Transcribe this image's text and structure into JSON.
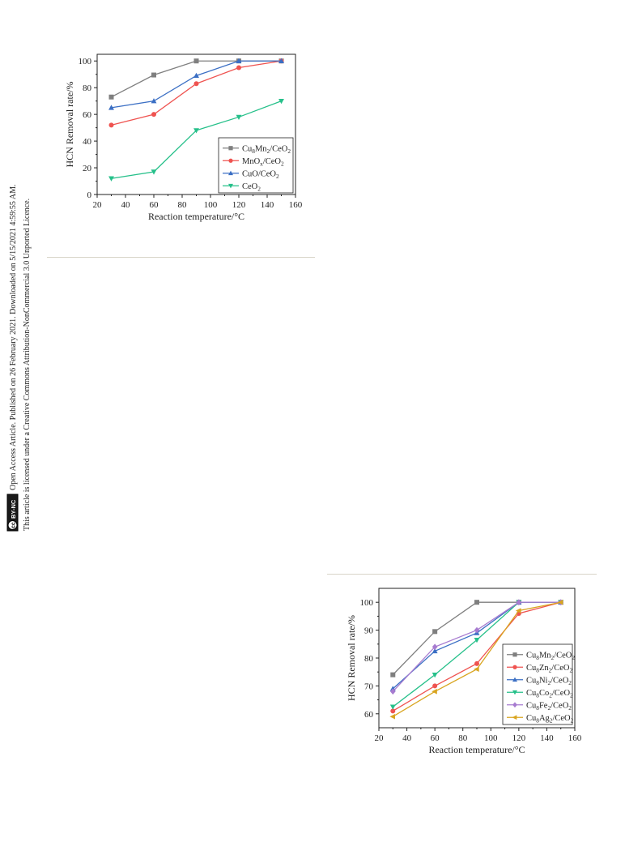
{
  "side_note": {
    "line1": "Open Access Article. Published on 26 February 2021. Downloaded on 5/15/2021 4:59:55 AM.",
    "line2": "This article is licensed under a Creative Commons Attribution-NonCommercial 3.0 Unported Licence.",
    "badge_cc": "cc",
    "badge_text": "BY-NC"
  },
  "chart_data": [
    {
      "type": "line",
      "title": "",
      "xlabel": "Reaction temperature/°C",
      "ylabel": "HCN Removal rate/%",
      "xlim": [
        20,
        160
      ],
      "ylim": [
        0,
        105
      ],
      "xticks": [
        20,
        40,
        60,
        80,
        100,
        120,
        140,
        160
      ],
      "yticks": [
        0,
        20,
        40,
        60,
        80,
        100
      ],
      "grid": false,
      "legend_position": "bottom-right",
      "x": [
        30,
        60,
        90,
        120,
        150
      ],
      "series": [
        {
          "name": "Cu8Mn2/CeO2",
          "base": "Cu",
          "sub1": "8",
          "mid": "Mn",
          "sub2": "2",
          "tail": "/CeO",
          "sub3": "2",
          "color": "#7f7f7f",
          "marker": "square",
          "values": [
            73,
            89.5,
            100,
            100,
            100
          ]
        },
        {
          "name": "MnOx/CeO2",
          "base": "MnO",
          "sub1": "x",
          "mid": "",
          "sub2": "",
          "tail": "/CeO",
          "sub3": "2",
          "color": "#ef5350",
          "marker": "circle",
          "values": [
            52,
            60,
            83,
            95,
            100
          ]
        },
        {
          "name": "CuO/CeO2",
          "base": "CuO",
          "sub1": "",
          "mid": "",
          "sub2": "",
          "tail": "/CeO",
          "sub3": "2",
          "color": "#3b6fc4",
          "marker": "triangle-up",
          "values": [
            65,
            70,
            89,
            100,
            100
          ]
        },
        {
          "name": "CeO2",
          "base": "CeO",
          "sub1": "2",
          "mid": "",
          "sub2": "",
          "tail": "",
          "sub3": "",
          "color": "#26c08a",
          "marker": "triangle-down",
          "values": [
            12,
            17,
            48,
            58,
            70
          ]
        }
      ]
    },
    {
      "type": "line",
      "title": "",
      "xlabel": "Reaction temperature/°C",
      "ylabel": "HCN Removal rate/%",
      "xlim": [
        20,
        160
      ],
      "ylim": [
        55,
        105
      ],
      "xticks": [
        20,
        40,
        60,
        80,
        100,
        120,
        140,
        160
      ],
      "yticks": [
        60,
        70,
        80,
        90,
        100
      ],
      "grid": false,
      "legend_position": "bottom-right",
      "x": [
        30,
        60,
        90,
        120,
        150
      ],
      "series": [
        {
          "name": "Cu8Mn2/CeO2",
          "base": "Cu",
          "sub1": "8",
          "mid": "Mn",
          "sub2": "2",
          "tail": "/CeO",
          "sub3": "2",
          "color": "#7f7f7f",
          "marker": "square",
          "values": [
            74,
            89.5,
            100,
            100,
            100
          ]
        },
        {
          "name": "Cu8Zn2/CeO2",
          "base": "Cu",
          "sub1": "8",
          "mid": "Zn",
          "sub2": "2",
          "tail": "/CeO",
          "sub3": "2",
          "color": "#ef5350",
          "marker": "circle",
          "values": [
            61,
            70,
            78,
            96,
            100
          ]
        },
        {
          "name": "Cu8Ni2/CeO2",
          "base": "Cu",
          "sub1": "8",
          "mid": "Ni",
          "sub2": "2",
          "tail": "/CeO",
          "sub3": "2",
          "color": "#3b6fc4",
          "marker": "triangle-up",
          "values": [
            69,
            82.5,
            89,
            100,
            100
          ]
        },
        {
          "name": "Cu8Co2/CeO2",
          "base": "Cu",
          "sub1": "8",
          "mid": "Co",
          "sub2": "2",
          "tail": "/CeO",
          "sub3": "2",
          "color": "#26c08a",
          "marker": "triangle-down",
          "values": [
            62.5,
            74,
            86.5,
            100,
            100
          ]
        },
        {
          "name": "Cu8Fe2/CeO2",
          "base": "Cu",
          "sub1": "8",
          "mid": "Fe",
          "sub2": "2",
          "tail": "/CeO",
          "sub3": "2",
          "color": "#a77bd0",
          "marker": "diamond",
          "values": [
            68,
            84,
            90,
            100,
            100
          ]
        },
        {
          "name": "Cu8Ag2/CeO2",
          "base": "Cu",
          "sub1": "8",
          "mid": "Ag",
          "sub2": "2",
          "tail": "/CeO",
          "sub3": "2",
          "color": "#d9a520",
          "marker": "diamond-left",
          "values": [
            59,
            68,
            76,
            97,
            100
          ]
        }
      ]
    }
  ]
}
